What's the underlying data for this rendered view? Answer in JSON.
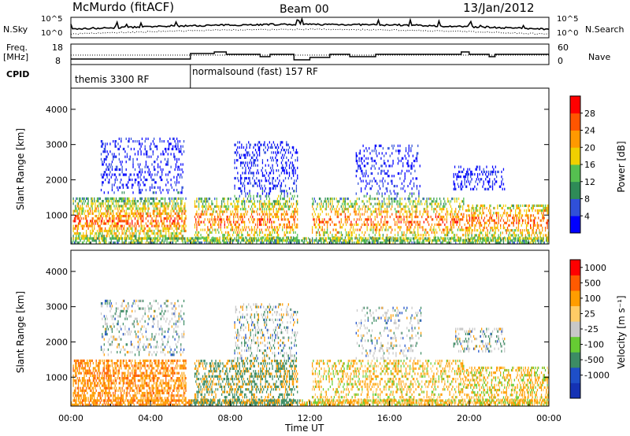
{
  "header": {
    "station": "McMurdo (fitACF)",
    "beam": "Beam 00",
    "date": "13/Jan/2012"
  },
  "left_labels": {
    "nsky": "N.Sky",
    "freq_line1": "Freq.",
    "freq_line2": "[MHz]",
    "cpid": "CPID"
  },
  "right_labels": {
    "nsearch": "N.Search",
    "nave": "Nave"
  },
  "noise_panel": {
    "tick_top": "10^5",
    "tick_bottom": "10^0",
    "right_tick_top": "10^5",
    "right_tick_bottom": "10^0"
  },
  "freq_panel": {
    "left_ticks": [
      "18",
      "8"
    ],
    "right_ticks": [
      "60",
      "0"
    ]
  },
  "cpid_panel": {
    "segments": [
      {
        "label": "themis 3300 RF",
        "start_hour": 0,
        "end_hour": 6
      },
      {
        "label": "normalsound (fast) 157 RF",
        "start_hour": 6,
        "end_hour": 24
      }
    ]
  },
  "colors": {
    "power": [
      "#0000ff",
      "#3050d8",
      "#2e8b57",
      "#55c050",
      "#f0d000",
      "#ff9900",
      "#ff5500",
      "#ff0000"
    ],
    "velocity": [
      "#ff0000",
      "#ff5a00",
      "#ff9d00",
      "#ffcc66",
      "#c8c8c8",
      "#66cc33",
      "#3c8c64",
      "#1e4fc8",
      "#1432b4"
    ]
  },
  "chart_data": [
    {
      "type": "heatmap",
      "parameter": "power",
      "ylabel": "Slant Range [km]",
      "ylim": [
        180,
        4600
      ],
      "yticks": [
        1000,
        2000,
        3000,
        4000
      ],
      "xlim": [
        0,
        24
      ],
      "colorbar_label": "Power [dB]",
      "colorbar_ticks": [
        "4",
        "8",
        "12",
        "16",
        "20",
        "24",
        "28"
      ],
      "colorbar_range": [
        0,
        30
      ]
    },
    {
      "type": "heatmap",
      "parameter": "velocity",
      "ylabel": "Slant Range [km]",
      "ylim": [
        180,
        4600
      ],
      "yticks": [
        1000,
        2000,
        3000,
        4000
      ],
      "xlim": [
        0,
        24
      ],
      "xticks": [
        "00:00",
        "04:00",
        "08:00",
        "12:00",
        "16:00",
        "20:00",
        "00:00"
      ],
      "xlabel": "Time UT",
      "colorbar_label": "Velocity [m s⁻¹]",
      "colorbar_ticks": [
        "1000",
        "500",
        "100",
        "25",
        "-25",
        "-100",
        "-500",
        "-1000"
      ]
    }
  ]
}
